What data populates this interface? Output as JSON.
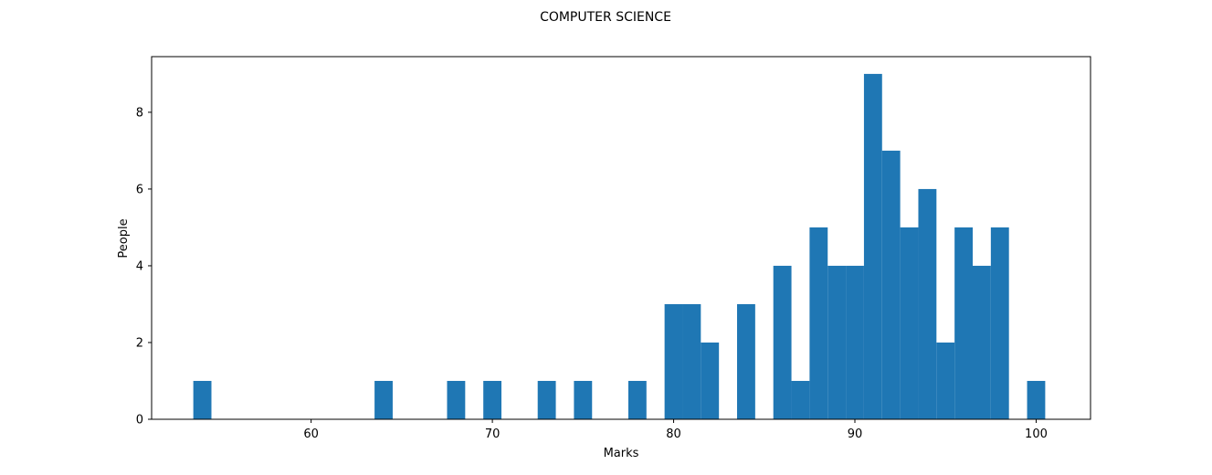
{
  "chart_data": {
    "type": "bar",
    "title": "COMPUTER SCIENCE",
    "xlabel": "Marks",
    "ylabel": "People",
    "xlim": [
      51.2,
      103.0
    ],
    "ylim": [
      0,
      9.45
    ],
    "grid": false,
    "bar_color": "#1f77b4",
    "bin_width": 1,
    "xticks": [
      60,
      70,
      80,
      90,
      100
    ],
    "yticks": [
      0,
      2,
      4,
      6,
      8
    ],
    "bins": [
      {
        "x": 54,
        "count": 1
      },
      {
        "x": 64,
        "count": 1
      },
      {
        "x": 68,
        "count": 1
      },
      {
        "x": 70,
        "count": 1
      },
      {
        "x": 73,
        "count": 1
      },
      {
        "x": 75,
        "count": 1
      },
      {
        "x": 78,
        "count": 1
      },
      {
        "x": 80,
        "count": 3
      },
      {
        "x": 81,
        "count": 3
      },
      {
        "x": 82,
        "count": 2
      },
      {
        "x": 84,
        "count": 3
      },
      {
        "x": 86,
        "count": 4
      },
      {
        "x": 87,
        "count": 1
      },
      {
        "x": 88,
        "count": 5
      },
      {
        "x": 89,
        "count": 4
      },
      {
        "x": 90,
        "count": 4
      },
      {
        "x": 91,
        "count": 9
      },
      {
        "x": 92,
        "count": 7
      },
      {
        "x": 93,
        "count": 5
      },
      {
        "x": 94,
        "count": 6
      },
      {
        "x": 95,
        "count": 2
      },
      {
        "x": 96,
        "count": 5
      },
      {
        "x": 97,
        "count": 4
      },
      {
        "x": 98,
        "count": 5
      },
      {
        "x": 100,
        "count": 1
      }
    ]
  }
}
